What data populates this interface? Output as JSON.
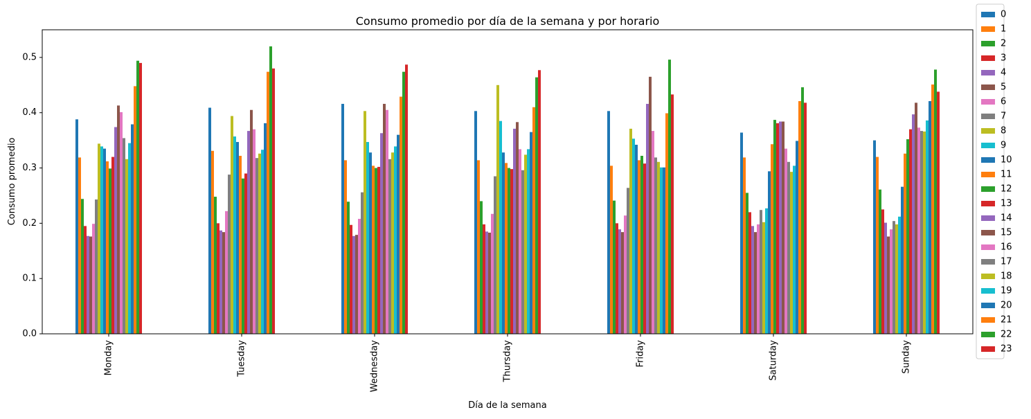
{
  "chart_data": {
    "type": "bar",
    "title": "Consumo promedio por día de la semana y por horario",
    "xlabel": "Día de la semana",
    "ylabel": "Consumo promedio",
    "categories": [
      "Monday",
      "Tuesday",
      "Wednesday",
      "Thursday",
      "Friday",
      "Saturday",
      "Sunday"
    ],
    "ylim": [
      0,
      0.55
    ],
    "yticks": [
      0.0,
      0.1,
      0.2,
      0.3,
      0.4,
      0.5
    ],
    "ytick_labels": [
      "0.0",
      "0.1",
      "0.2",
      "0.3",
      "0.4",
      "0.5"
    ],
    "grid": false,
    "legend_position": "outside-right",
    "colors": [
      "#1f77b4",
      "#ff7f0e",
      "#2ca02c",
      "#d62728",
      "#9467bd",
      "#8c564b",
      "#e377c2",
      "#7f7f7f",
      "#bcbd22",
      "#17becf"
    ],
    "series": [
      {
        "name": "0",
        "values": [
          0.388,
          0.409,
          0.416,
          0.403,
          0.403,
          0.364,
          0.35
        ]
      },
      {
        "name": "1",
        "values": [
          0.319,
          0.331,
          0.314,
          0.314,
          0.304,
          0.319,
          0.32
        ]
      },
      {
        "name": "2",
        "values": [
          0.244,
          0.248,
          0.239,
          0.24,
          0.241,
          0.255,
          0.261
        ]
      },
      {
        "name": "3",
        "values": [
          0.195,
          0.2,
          0.197,
          0.198,
          0.2,
          0.22,
          0.225
        ]
      },
      {
        "name": "4",
        "values": [
          0.177,
          0.187,
          0.177,
          0.185,
          0.189,
          0.195,
          0.201
        ]
      },
      {
        "name": "5",
        "values": [
          0.176,
          0.184,
          0.179,
          0.183,
          0.184,
          0.184,
          0.176
        ]
      },
      {
        "name": "6",
        "values": [
          0.199,
          0.222,
          0.208,
          0.217,
          0.214,
          0.198,
          0.189
        ]
      },
      {
        "name": "7",
        "values": [
          0.243,
          0.288,
          0.256,
          0.285,
          0.264,
          0.224,
          0.204
        ]
      },
      {
        "name": "8",
        "values": [
          0.344,
          0.394,
          0.403,
          0.45,
          0.371,
          0.202,
          0.198
        ]
      },
      {
        "name": "9",
        "values": [
          0.339,
          0.357,
          0.347,
          0.385,
          0.353,
          0.227,
          0.212
        ]
      },
      {
        "name": "10",
        "values": [
          0.335,
          0.347,
          0.328,
          0.328,
          0.342,
          0.294,
          0.266
        ]
      },
      {
        "name": "11",
        "values": [
          0.312,
          0.322,
          0.304,
          0.309,
          0.314,
          0.343,
          0.326
        ]
      },
      {
        "name": "12",
        "values": [
          0.299,
          0.281,
          0.3,
          0.3,
          0.322,
          0.387,
          0.352
        ]
      },
      {
        "name": "13",
        "values": [
          0.32,
          0.29,
          0.302,
          0.298,
          0.308,
          0.381,
          0.37
        ]
      },
      {
        "name": "14",
        "values": [
          0.374,
          0.367,
          0.363,
          0.371,
          0.416,
          0.384,
          0.397
        ]
      },
      {
        "name": "15",
        "values": [
          0.413,
          0.405,
          0.416,
          0.383,
          0.465,
          0.384,
          0.418
        ]
      },
      {
        "name": "16",
        "values": [
          0.401,
          0.37,
          0.405,
          0.334,
          0.367,
          0.335,
          0.373
        ]
      },
      {
        "name": "17",
        "values": [
          0.354,
          0.318,
          0.316,
          0.296,
          0.319,
          0.311,
          0.367
        ]
      },
      {
        "name": "18",
        "values": [
          0.316,
          0.326,
          0.328,
          0.324,
          0.311,
          0.293,
          0.366
        ]
      },
      {
        "name": "19",
        "values": [
          0.345,
          0.333,
          0.339,
          0.334,
          0.301,
          0.304,
          0.386
        ]
      },
      {
        "name": "20",
        "values": [
          0.379,
          0.381,
          0.36,
          0.365,
          0.301,
          0.349,
          0.421
        ]
      },
      {
        "name": "21",
        "values": [
          0.448,
          0.474,
          0.429,
          0.41,
          0.399,
          0.421,
          0.451
        ]
      },
      {
        "name": "22",
        "values": [
          0.494,
          0.52,
          0.474,
          0.464,
          0.496,
          0.446,
          0.478
        ]
      },
      {
        "name": "23",
        "values": [
          0.49,
          0.48,
          0.487,
          0.477,
          0.433,
          0.418,
          0.438
        ]
      }
    ]
  }
}
